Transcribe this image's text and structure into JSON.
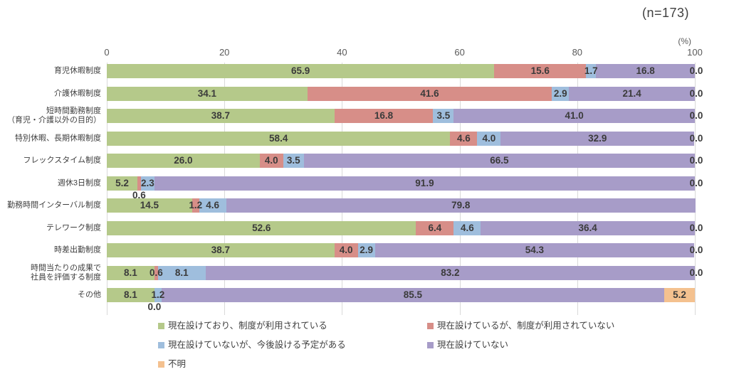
{
  "header": {
    "sample_size": "(n=173)",
    "percent_label": "(%)"
  },
  "chart_data": {
    "type": "bar",
    "stacked": true,
    "orientation": "horizontal",
    "title": "",
    "xlabel": "(%)",
    "ylabel": "",
    "xlim": [
      0,
      100
    ],
    "x_ticks": [
      0,
      20,
      40,
      60,
      80,
      100
    ],
    "grid": "vertical",
    "legend_position": "bottom",
    "sample_size_note": "(n=173)",
    "categories": [
      "育児休暇制度",
      "介護休暇制度",
      "短時間勤務制度\n（育児・介護以外の目的）",
      "特別休暇、長期休暇制度",
      "フレックスタイム制度",
      "週休3日制度",
      "勤務時間インターバル制度",
      "テレワーク制度",
      "時差出勤制度",
      "時間当たりの成果で\n社員を評価する制度",
      "その他"
    ],
    "series": [
      {
        "name": "現在設けており、制度が利用されている",
        "color": "#b5c98a",
        "values": [
          65.9,
          34.1,
          38.7,
          58.4,
          26.0,
          5.2,
          14.5,
          52.6,
          38.7,
          8.1,
          8.1
        ]
      },
      {
        "name": "現在設けているが、制度が利用されていない",
        "color": "#d78e88",
        "values": [
          15.6,
          41.6,
          16.8,
          4.6,
          4.0,
          0.6,
          1.2,
          6.4,
          4.0,
          0.6,
          0.0
        ]
      },
      {
        "name": "現在設けていないが、今後設ける予定がある",
        "color": "#9fbedd",
        "values": [
          1.7,
          2.9,
          3.5,
          4.0,
          3.5,
          2.3,
          4.6,
          4.6,
          2.9,
          8.1,
          1.2
        ]
      },
      {
        "name": "現在設けていない",
        "color": "#a79cc8",
        "values": [
          16.8,
          21.4,
          41.0,
          32.9,
          66.5,
          91.9,
          79.8,
          36.4,
          54.3,
          83.2,
          85.5
        ]
      },
      {
        "name": "不明",
        "color": "#f4c18f",
        "values": [
          0.0,
          0.0,
          0.0,
          0.0,
          0.0,
          0.0,
          0.0,
          0.0,
          0.0,
          0.0,
          5.2
        ]
      }
    ],
    "label_overrides": [
      {
        "row": 5,
        "series": 1,
        "mode": "below"
      },
      {
        "row": 10,
        "series": 1,
        "mode": "below"
      },
      {
        "row": 6,
        "series": 4,
        "mode": "hidden"
      }
    ]
  }
}
